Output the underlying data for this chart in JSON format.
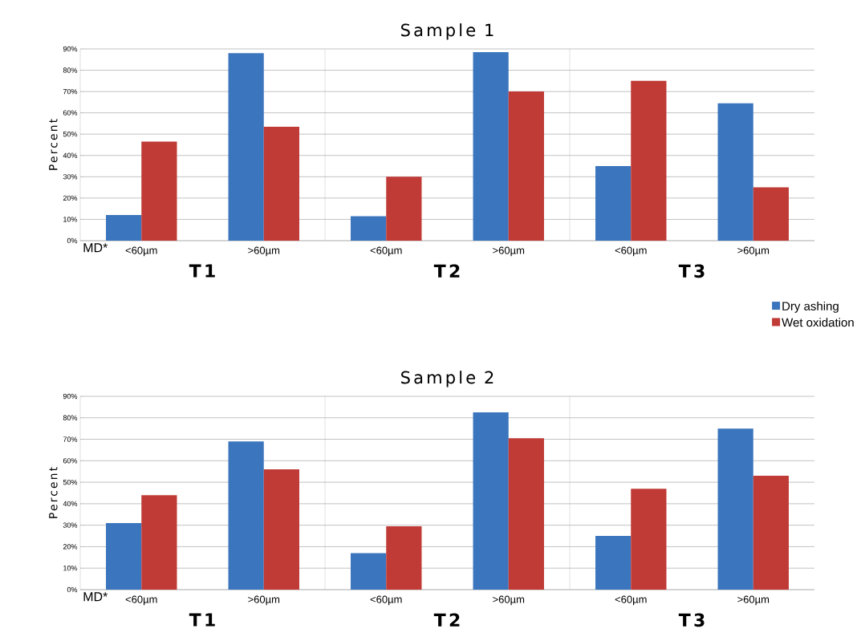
{
  "chart_data": [
    {
      "type": "bar",
      "title": "Sample 1",
      "ylabel": "Percent",
      "categories": [
        "<60µm",
        ">60µm",
        "<60µm",
        ">60µm",
        "<60µm",
        ">60µm"
      ],
      "series": [
        {
          "name": "Dry ashing",
          "color": "#3b75bd",
          "values": [
            12,
            88,
            11.5,
            88.5,
            35,
            64.5
          ]
        },
        {
          "name": "Wet oxidation",
          "color": "#c03a36",
          "values": [
            46.5,
            53.5,
            30,
            70,
            75,
            25
          ]
        }
      ],
      "ylim": [
        0,
        90
      ],
      "yticks": [
        {
          "value": 0,
          "label": "0%"
        },
        {
          "value": 10,
          "label": "10%"
        },
        {
          "value": 20,
          "label": "20%"
        },
        {
          "value": 30,
          "label": "30%"
        },
        {
          "value": 40,
          "label": "40%"
        },
        {
          "value": 50,
          "label": "50%"
        },
        {
          "value": 60,
          "label": "60%"
        },
        {
          "value": 70,
          "label": "70%"
        },
        {
          "value": 80,
          "label": "80%"
        },
        {
          "value": 90,
          "label": "90%"
        }
      ],
      "grid": "y",
      "legend": "bottom right",
      "annotations": [
        "MD*",
        "T1",
        "T2",
        "T3"
      ]
    },
    {
      "type": "bar",
      "title": "Sample 2",
      "ylabel": "Percent",
      "categories": [
        "<60µm",
        ">60µm",
        "<60µm",
        ">60µm",
        "<60µm",
        ">60µm"
      ],
      "series": [
        {
          "color": "#3b75bd",
          "values": [
            31,
            69,
            17,
            82.5,
            25,
            75
          ]
        },
        {
          "color": "#c03a36",
          "values": [
            44,
            56,
            29.5,
            70.5,
            47,
            53
          ]
        }
      ],
      "ylim": [
        0,
        90
      ],
      "yticks": [
        {
          "value": 0,
          "label": "0%"
        },
        {
          "value": 10,
          "label": "10%"
        },
        {
          "value": 20,
          "label": "20%"
        },
        {
          "value": 30,
          "label": "30%"
        },
        {
          "value": 40,
          "label": "40%"
        },
        {
          "value": 50,
          "label": "50%"
        },
        {
          "value": 60,
          "label": "60%"
        },
        {
          "value": 70,
          "label": "70%"
        },
        {
          "value": 80,
          "label": "80%"
        },
        {
          "value": 90,
          "label": "90%"
        }
      ],
      "grid": "y",
      "annotations": [
        "MD*",
        "T1",
        "T2",
        "T3"
      ]
    }
  ]
}
